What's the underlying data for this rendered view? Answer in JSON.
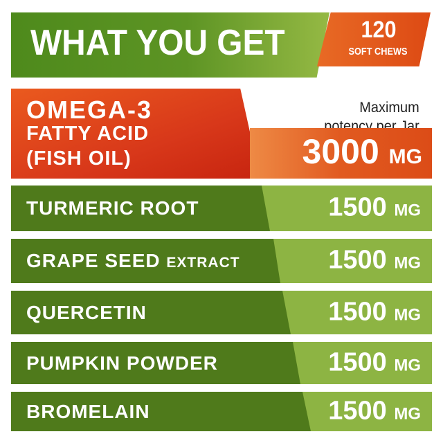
{
  "header": {
    "title": "WHAT YOU GET",
    "badge_count": "120",
    "badge_label": "SOFT CHEWS"
  },
  "omega": {
    "line1": "OMEGA-3",
    "line2": "FATTY ACID",
    "line3": "(FISH OIL)",
    "potency_line1": "Maximum",
    "potency_line2": "potency per Jar",
    "amount": "3000",
    "unit": "MG"
  },
  "rows": [
    {
      "name": "TURMERIC ROOT",
      "suffix": "",
      "amount": "1500",
      "unit": "MG"
    },
    {
      "name": "GRAPE SEED",
      "suffix": "EXTRACT",
      "amount": "1500",
      "unit": "MG"
    },
    {
      "name": "QUERCETIN",
      "suffix": "",
      "amount": "1500",
      "unit": "MG"
    },
    {
      "name": "PUMPKIN POWDER",
      "suffix": "",
      "amount": "1500",
      "unit": "MG"
    },
    {
      "name": "BROMELAIN",
      "suffix": "",
      "amount": "1500",
      "unit": "MG"
    }
  ],
  "colors": {
    "dark_green": "#4f7a1b",
    "light_green": "#8db443",
    "orange": "#e15a20",
    "red": "#d8381a"
  }
}
